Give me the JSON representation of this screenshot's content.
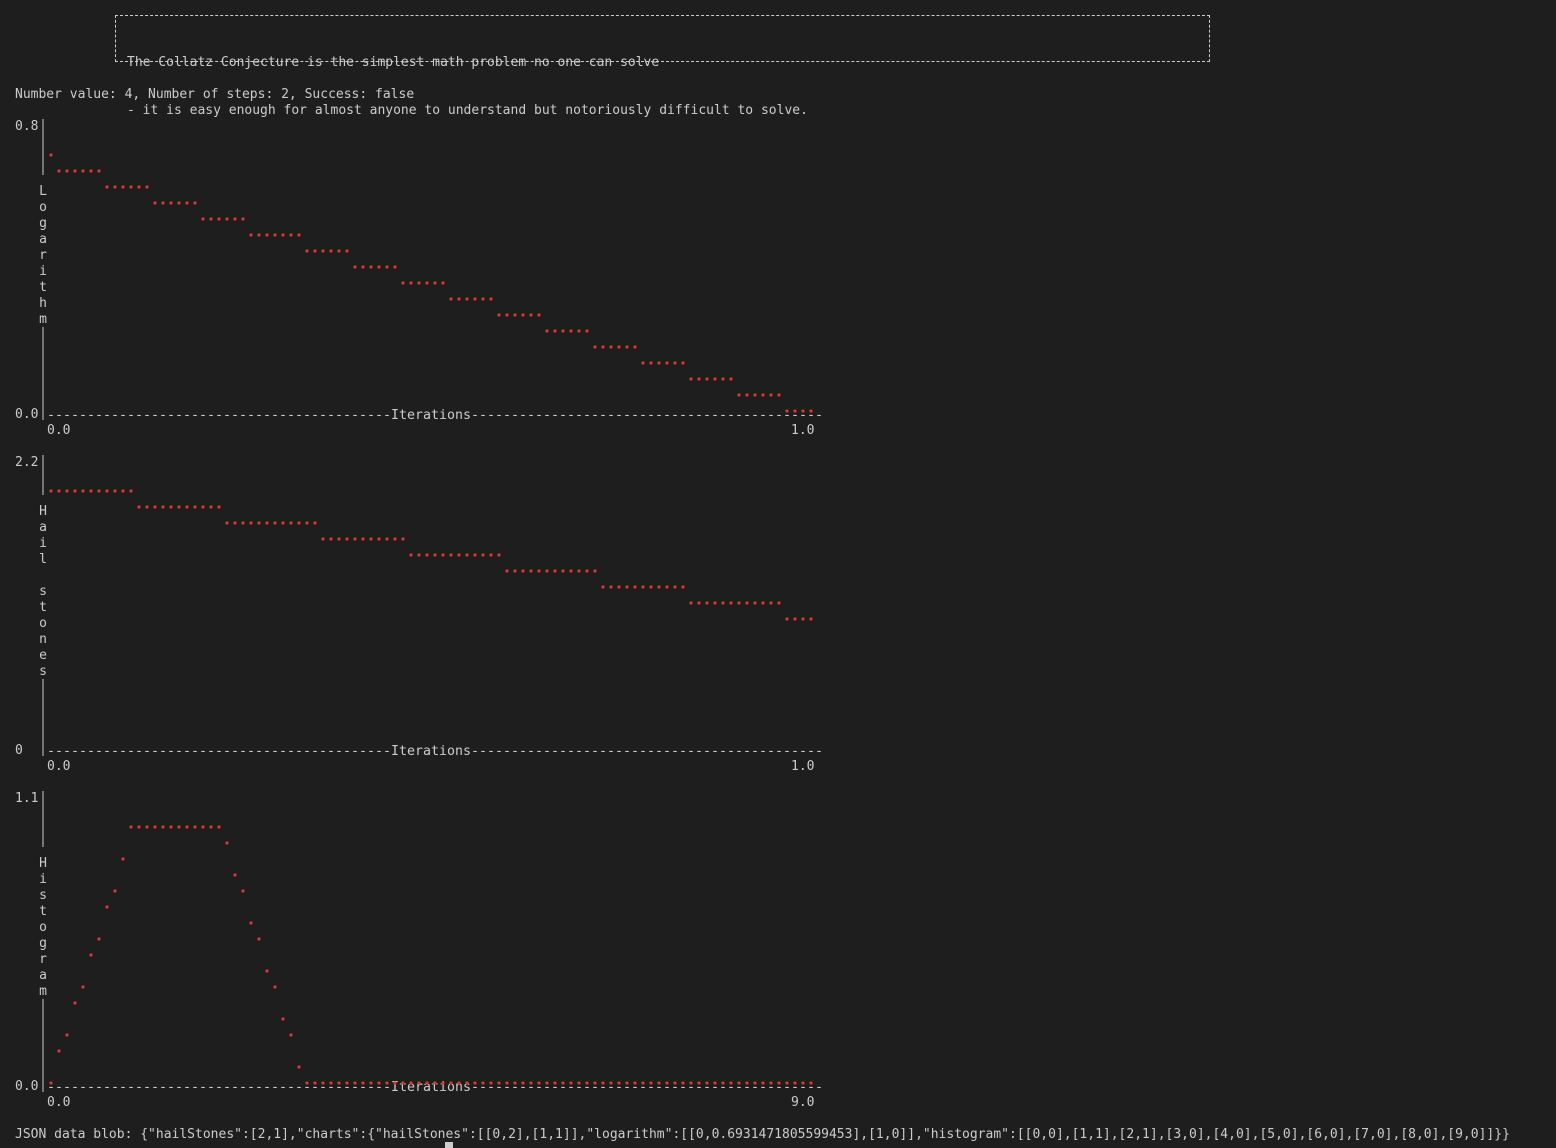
{
  "banner": {
    "line1": "The Collatz Conjecture is the simplest math problem no one can solve",
    "line2": "- it is easy enough for almost anyone to understand but notoriously difficult to solve."
  },
  "status": {
    "text": "Number value: 4, Number of steps: 2, Success: false"
  },
  "charts": [
    {
      "id": "logarithm",
      "ymax_label": "0.8",
      "ymin_label": "0.0",
      "ylabel": "Logarithm",
      "xlabel": "Iterations",
      "xmin_label": "0.0",
      "xmax_label": "1.0"
    },
    {
      "id": "hailstones",
      "ymax_label": "2.2",
      "ymin_label": "0",
      "ylabel": "Hail stones",
      "xlabel": "Iterations",
      "xmin_label": "0.0",
      "xmax_label": "1.0"
    },
    {
      "id": "histogram",
      "ymax_label": "1.1",
      "ymin_label": "0.0",
      "ylabel": "Histogram",
      "xlabel": "Iterations",
      "xmin_label": "0.0",
      "xmax_label": "9.0"
    }
  ],
  "chart_data": [
    {
      "type": "line",
      "ylabel": "Logarithm",
      "xlabel": "Iterations",
      "x": [
        0,
        1
      ],
      "y": [
        0.6931471805599453,
        0
      ],
      "xlim": [
        0,
        1
      ],
      "ylim": [
        0.0,
        0.8
      ]
    },
    {
      "type": "line",
      "ylabel": "Hail stones",
      "xlabel": "Iterations",
      "x": [
        0,
        1
      ],
      "y": [
        2,
        1
      ],
      "xlim": [
        0,
        1
      ],
      "ylim": [
        0,
        2.2
      ]
    },
    {
      "type": "line",
      "ylabel": "Histogram",
      "xlabel": "Iterations",
      "x": [
        0,
        1,
        2,
        3,
        4,
        5,
        6,
        7,
        8,
        9
      ],
      "y": [
        0,
        1,
        1,
        0,
        0,
        0,
        0,
        0,
        0,
        0
      ],
      "xlim": [
        0,
        9
      ],
      "ylim": [
        0.0,
        1.1
      ]
    }
  ],
  "json_blob": "JSON data blob: {\"hailStones\":[2,1],\"charts\":{\"hailStones\":[[0,2],[1,1]],\"logarithm\":[[0,0.6931471805599453],[1,0]],\"histogram\":[[0,0],[1,1],[2,1],[3,0],[4,0],[5,0],[6,0],[7,0],[8,0],[9,0]]}}",
  "colors": {
    "background": "#1e1e1e",
    "text": "#cccccc",
    "plot_points": "#d0393e",
    "prompt": "#4fa3e0"
  }
}
